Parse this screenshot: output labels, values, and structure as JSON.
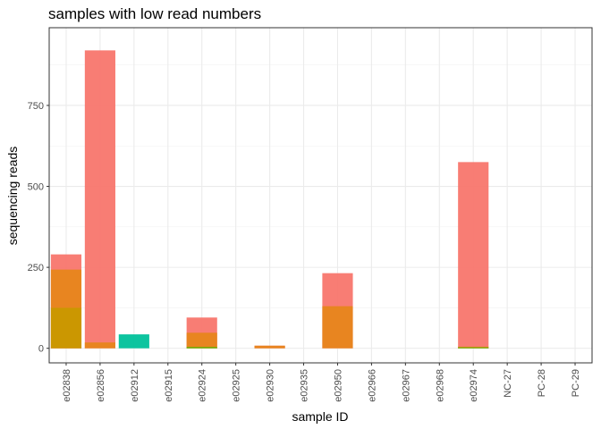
{
  "chart_data": {
    "type": "bar",
    "title": "samples with low read numbers",
    "xlabel": "sample ID",
    "ylabel": "sequencing reads",
    "ylim": [
      -45,
      990
    ],
    "yticks": [
      0,
      250,
      500,
      750
    ],
    "grid": true,
    "legend": "none",
    "categories": [
      "e02838",
      "e02856",
      "e02912",
      "e02915",
      "e02924",
      "e02925",
      "e02930",
      "e02935",
      "e02950",
      "e02966",
      "e02967",
      "e02968",
      "e02974",
      "NC-27",
      "PC-28",
      "PC-29"
    ],
    "layers": [
      {
        "color": "#F8766D",
        "values": [
          290,
          920,
          0,
          0,
          95,
          0,
          8,
          0,
          232,
          0,
          0,
          0,
          575,
          0,
          0,
          0
        ]
      },
      {
        "color": "#E7861B",
        "values": [
          243,
          18,
          0,
          0,
          48,
          0,
          8,
          0,
          130,
          0,
          0,
          0,
          5,
          0,
          0,
          0
        ]
      },
      {
        "color": "#C99800",
        "values": [
          125,
          0,
          0,
          0,
          0,
          0,
          0,
          0,
          0,
          0,
          0,
          0,
          0,
          0,
          0,
          0
        ]
      },
      {
        "color": "#00C19A",
        "values": [
          0,
          0,
          43,
          0,
          0,
          0,
          0,
          0,
          0,
          0,
          0,
          0,
          0,
          0,
          0,
          0
        ]
      },
      {
        "color": "#5BB300",
        "values": [
          0,
          0,
          0,
          0,
          4,
          0,
          0,
          0,
          0,
          0,
          0,
          0,
          3,
          0,
          0,
          0
        ]
      }
    ]
  }
}
